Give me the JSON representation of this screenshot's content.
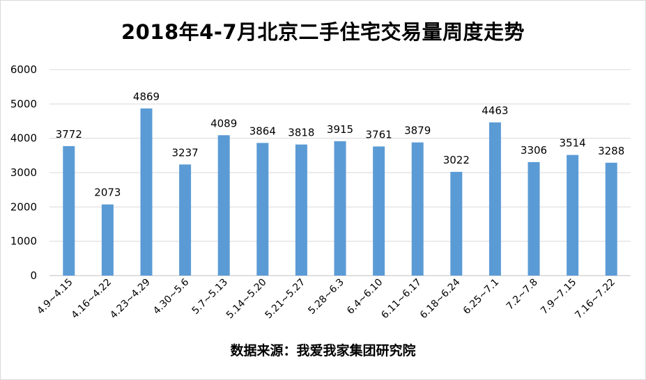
{
  "chart_data": {
    "type": "bar",
    "title": "2018年4-7月北京二手住宅交易量周度走势",
    "source": "数据来源：我爱我家集团研究院",
    "categories": [
      "4.9~4.15",
      "4.16~4.22",
      "4.23~4.29",
      "4.30~5.6",
      "5.7~5.13",
      "5.14~5.20",
      "5.21~5.27",
      "5.28~6.3",
      "6.4~6.10",
      "6.11~6.17",
      "6.18~6.24",
      "6.25~7.1",
      "7.2~7.8",
      "7.9~7.15",
      "7.16~7.22"
    ],
    "values": [
      3772,
      2073,
      4869,
      3237,
      4089,
      3864,
      3818,
      3915,
      3761,
      3879,
      3022,
      4463,
      3306,
      3514,
      3288
    ],
    "ylim": [
      0,
      6000
    ],
    "yticks": [
      0,
      1000,
      2000,
      3000,
      4000,
      5000,
      6000
    ],
    "xlabel": "",
    "ylabel": "",
    "grid": true,
    "legend": "none",
    "bar_color": "#5b9bd5",
    "grid_color": "#d9d9d9"
  }
}
